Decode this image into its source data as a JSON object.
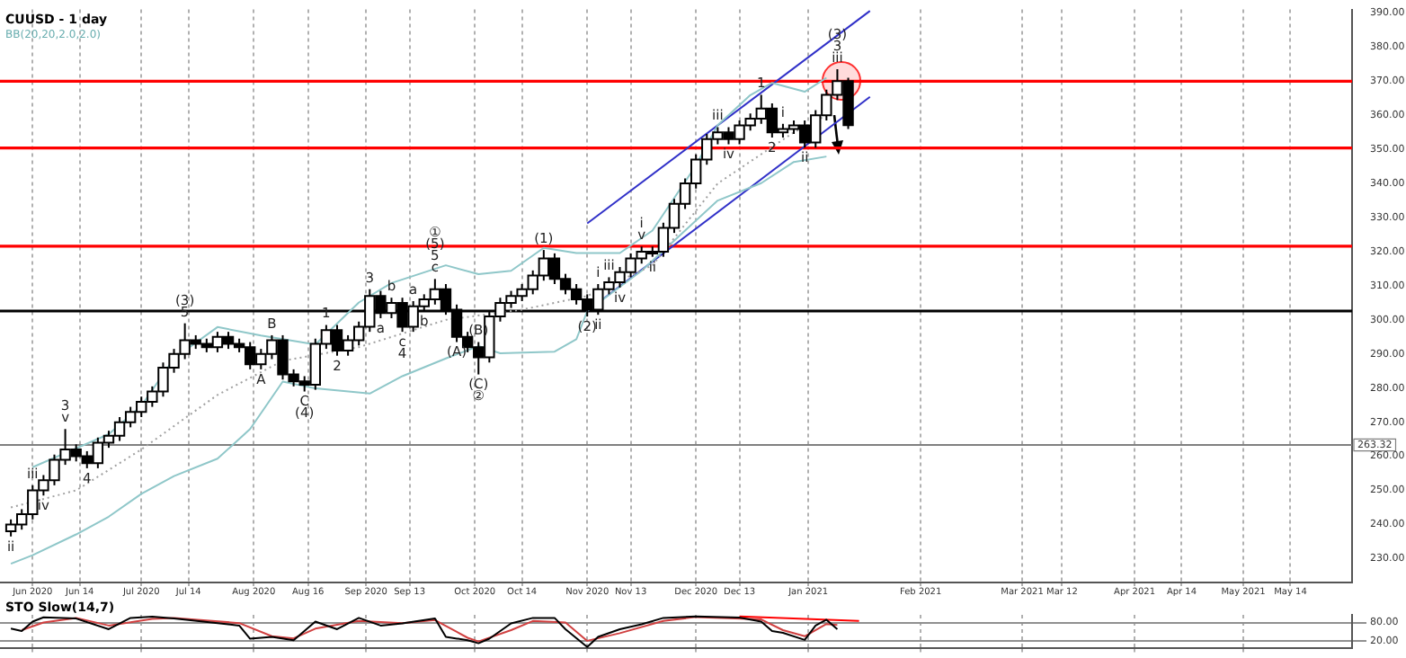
{
  "chart_data": [
    {
      "type": "candlestick",
      "title": "CUUSD - 1 day",
      "subtitle": "BB(20,20,2.0,2.0)",
      "x": [
        "2020-05-26",
        "2020-05-29",
        "2020-06-01",
        "2020-06-04",
        "2020-06-07",
        "2020-06-10",
        "2020-06-13",
        "2020-06-16",
        "2020-06-19",
        "2020-06-22",
        "2020-06-25",
        "2020-06-28",
        "2020-07-01",
        "2020-07-04",
        "2020-07-07",
        "2020-07-10",
        "2020-07-13",
        "2020-07-16",
        "2020-07-19",
        "2020-07-22",
        "2020-07-25",
        "2020-07-28",
        "2020-07-31",
        "2020-08-03",
        "2020-08-06",
        "2020-08-09",
        "2020-08-12",
        "2020-08-15",
        "2020-08-18",
        "2020-08-21",
        "2020-08-24",
        "2020-08-27",
        "2020-08-30",
        "2020-09-02",
        "2020-09-05",
        "2020-09-08",
        "2020-09-11",
        "2020-09-14",
        "2020-09-17",
        "2020-09-20",
        "2020-09-23",
        "2020-09-26",
        "2020-09-29",
        "2020-10-02",
        "2020-10-05",
        "2020-10-08",
        "2020-10-11",
        "2020-10-14",
        "2020-10-17",
        "2020-10-20",
        "2020-10-23",
        "2020-10-26",
        "2020-10-29",
        "2020-11-01",
        "2020-11-04",
        "2020-11-07",
        "2020-11-10",
        "2020-11-13",
        "2020-11-16",
        "2020-11-19",
        "2020-11-22",
        "2020-11-25",
        "2020-11-28",
        "2020-12-01",
        "2020-12-04",
        "2020-12-07",
        "2020-12-10",
        "2020-12-13",
        "2020-12-16",
        "2020-12-19",
        "2020-12-22",
        "2020-12-25",
        "2020-12-28",
        "2020-12-31",
        "2021-01-03",
        "2021-01-06",
        "2021-01-09",
        "2021-01-12"
      ],
      "ohlc": [
        [
          238,
          241.5,
          236.5,
          240
        ],
        [
          240,
          244.5,
          238.5,
          243
        ],
        [
          243,
          251.5,
          241.5,
          250
        ],
        [
          250,
          254.5,
          248.5,
          253
        ],
        [
          253,
          260.5,
          251.5,
          259
        ],
        [
          259,
          268,
          257.5,
          262
        ],
        [
          262,
          263.5,
          258.5,
          260
        ],
        [
          260,
          261.5,
          256.5,
          258
        ],
        [
          258,
          265.5,
          256.5,
          264
        ],
        [
          264,
          267.5,
          262.5,
          266
        ],
        [
          266,
          271.5,
          264.5,
          270
        ],
        [
          270,
          274.5,
          268.5,
          273
        ],
        [
          273,
          277.5,
          271.5,
          276
        ],
        [
          276,
          280.5,
          274.5,
          279
        ],
        [
          279,
          287.5,
          277.5,
          286
        ],
        [
          286,
          291.5,
          284.5,
          290
        ],
        [
          290,
          299,
          288.5,
          294
        ],
        [
          294,
          295.5,
          291.5,
          293
        ],
        [
          293,
          294.5,
          290.5,
          292
        ],
        [
          292,
          296.5,
          290.5,
          295
        ],
        [
          295,
          296.5,
          291.5,
          293
        ],
        [
          293,
          294.5,
          290.5,
          292
        ],
        [
          292,
          293.5,
          285.5,
          287
        ],
        [
          287,
          291.5,
          285.5,
          290
        ],
        [
          290,
          295.5,
          288.5,
          294
        ],
        [
          294,
          295.5,
          282.5,
          284
        ],
        [
          284,
          285.5,
          280.5,
          282
        ],
        [
          282,
          283.5,
          279,
          281
        ],
        [
          281,
          294.5,
          279.5,
          293
        ],
        [
          293,
          298.5,
          291.5,
          297
        ],
        [
          297,
          298.5,
          289.5,
          291
        ],
        [
          291,
          295.5,
          289.5,
          294
        ],
        [
          294,
          299.5,
          292.5,
          298
        ],
        [
          298,
          309,
          296.5,
          307
        ],
        [
          307,
          308.5,
          300.5,
          302
        ],
        [
          302,
          306.5,
          300.5,
          305
        ],
        [
          305,
          306.5,
          296.5,
          298
        ],
        [
          298,
          305.5,
          296.5,
          304
        ],
        [
          304,
          307.5,
          302.5,
          306
        ],
        [
          306,
          312,
          304.5,
          309
        ],
        [
          309,
          310.5,
          301.5,
          303
        ],
        [
          303,
          304.5,
          293.5,
          295
        ],
        [
          295,
          296.5,
          290.5,
          292
        ],
        [
          292,
          293.5,
          284,
          289
        ],
        [
          289,
          302.5,
          287.5,
          301
        ],
        [
          301,
          306.5,
          299.5,
          305
        ],
        [
          305,
          308.5,
          303.5,
          307
        ],
        [
          307,
          310.5,
          305.5,
          309
        ],
        [
          309,
          314.5,
          307.5,
          313
        ],
        [
          313,
          320.5,
          311.5,
          318
        ],
        [
          318,
          319.5,
          310.5,
          312
        ],
        [
          312,
          313.5,
          307.5,
          309
        ],
        [
          309,
          310.5,
          304.5,
          306
        ],
        [
          306,
          307.5,
          301,
          303
        ],
        [
          303,
          310.5,
          301.5,
          309
        ],
        [
          309,
          312.5,
          307.5,
          311
        ],
        [
          311,
          315.5,
          309.5,
          314
        ],
        [
          314,
          319.5,
          312.5,
          318
        ],
        [
          318,
          321.5,
          316.5,
          320
        ],
        [
          320,
          321.5,
          318.5,
          320
        ],
        [
          320,
          328.5,
          318.5,
          327
        ],
        [
          327,
          335.5,
          325.5,
          334
        ],
        [
          334,
          341.5,
          332.5,
          340
        ],
        [
          340,
          348.5,
          338.5,
          347
        ],
        [
          347,
          354.5,
          345.5,
          353
        ],
        [
          353,
          356.5,
          351.5,
          355
        ],
        [
          355,
          356.5,
          351.5,
          353
        ],
        [
          353,
          358.5,
          351.5,
          357
        ],
        [
          357,
          360.5,
          355.5,
          359
        ],
        [
          359,
          366,
          357.5,
          362
        ],
        [
          362,
          363.5,
          353.5,
          355
        ],
        [
          355,
          357.5,
          353.5,
          356
        ],
        [
          356,
          358.5,
          354.5,
          357
        ],
        [
          357,
          358.5,
          350.5,
          352
        ],
        [
          352,
          361.5,
          350.5,
          360
        ],
        [
          360,
          367.5,
          358.5,
          366
        ],
        [
          366,
          373.5,
          364.5,
          370
        ],
        [
          370,
          371,
          356,
          357.1
        ]
      ],
      "series": [
        {
          "type": "line",
          "color": "#8fc7c9",
          "x": [
            "2020-06-01",
            "2020-06-22",
            "2020-07-01",
            "2020-07-10",
            "2020-07-22",
            "2020-08-03",
            "2020-08-18",
            "2020-08-30",
            "2020-09-08",
            "2020-09-23",
            "2020-10-02",
            "2020-10-11",
            "2020-10-20",
            "2020-10-29",
            "2020-11-10",
            "2020-11-19",
            "2020-12-01",
            "2020-12-07",
            "2020-12-16",
            "2020-12-22",
            "2020-12-31",
            "2021-01-06"
          ],
          "values": [
            256.8,
            266.5,
            274.8,
            288.7,
            297.9,
            295.4,
            292.8,
            305.1,
            310.8,
            316,
            313.4,
            314.4,
            321.1,
            319.6,
            319.6,
            326.2,
            345.3,
            357.1,
            365.9,
            369.5,
            366.9,
            371
          ]
        },
        {
          "type": "line",
          "color": "#a0a0a0",
          "line_style": "dotted",
          "x": [
            "2020-05-26",
            "2020-06-13",
            "2020-07-01",
            "2020-07-22",
            "2020-08-09",
            "2020-08-30",
            "2020-09-23",
            "2020-10-14",
            "2020-11-01",
            "2020-11-19",
            "2020-12-07",
            "2020-12-28",
            "2021-01-06"
          ],
          "values": [
            245,
            250,
            262,
            278,
            288,
            292,
            300,
            303,
            307,
            316,
            340,
            355,
            360
          ]
        },
        {
          "type": "line",
          "color": "#8fc7c9",
          "x": [
            "2020-05-26",
            "2020-06-01",
            "2020-06-13",
            "2020-06-22",
            "2020-07-01",
            "2020-07-10",
            "2020-07-22",
            "2020-07-31",
            "2020-08-09",
            "2020-08-18",
            "2020-09-02",
            "2020-09-11",
            "2020-09-23",
            "2020-10-02",
            "2020-10-08",
            "2020-10-23",
            "2020-10-29",
            "2020-11-01",
            "2020-11-16",
            "2020-11-28",
            "2020-12-07",
            "2020-12-19",
            "2020-12-28",
            "2021-01-06"
          ],
          "values": [
            228.5,
            231,
            237.1,
            242.3,
            249,
            254.2,
            259.3,
            268,
            281.9,
            279.9,
            278.4,
            283.5,
            288.7,
            292.3,
            290.2,
            290.7,
            294.3,
            302.6,
            314.4,
            326.2,
            335,
            340.1,
            346.3,
            347.9
          ]
        },
        {
          "type": "line",
          "color": "#3030c8",
          "x": [
            "2020-11-01",
            "2021-01-18"
          ],
          "values": [
            328.3,
            390.6
          ]
        },
        {
          "type": "line",
          "color": "#3030c8",
          "x": [
            "2020-11-01",
            "2021-01-18"
          ],
          "values": [
            302.6,
            365.4
          ]
        }
      ],
      "ref_lines": [
        {
          "axis": "y",
          "value": 370,
          "color": "#ff0000"
        },
        {
          "axis": "y",
          "value": 350.4,
          "color": "#ff0000"
        },
        {
          "axis": "y",
          "value": 321.6,
          "color": "#ff0000"
        },
        {
          "axis": "y",
          "value": 302.6,
          "color": "#000000"
        },
        {
          "axis": "y",
          "value": 263.32,
          "label": "263.32",
          "color": "#808080"
        }
      ],
      "annotations": [
        {
          "text": "ii",
          "x": "2020-05-26",
          "y": 236.5
        },
        {
          "text": "iii",
          "x": "2020-06-01",
          "y": 251.5
        },
        {
          "text": "iv",
          "x": "2020-06-04",
          "y": 248.5
        },
        {
          "text": "v",
          "x": "2020-06-10",
          "y": 268
        },
        {
          "text": "3",
          "x": "2020-06-10",
          "y": 268
        },
        {
          "text": "4",
          "x": "2020-06-16",
          "y": 256.5
        },
        {
          "text": "5",
          "x": "2020-07-13",
          "y": 299
        },
        {
          "text": "(3)",
          "x": "2020-07-13",
          "y": 299
        },
        {
          "text": "A",
          "x": "2020-08-03",
          "y": 285.5
        },
        {
          "text": "B",
          "x": "2020-08-06",
          "y": 295.5
        },
        {
          "text": "C",
          "x": "2020-08-15",
          "y": 279
        },
        {
          "text": "(4)",
          "x": "2020-08-15",
          "y": 279
        },
        {
          "text": "1",
          "x": "2020-08-21",
          "y": 298.5
        },
        {
          "text": "2",
          "x": "2020-08-24",
          "y": 289.5
        },
        {
          "text": "3",
          "x": "2020-09-02",
          "y": 309
        },
        {
          "text": "a",
          "x": "2020-09-05",
          "y": 300.5
        },
        {
          "text": "b",
          "x": "2020-09-08",
          "y": 306.5
        },
        {
          "text": "c",
          "x": "2020-09-11",
          "y": 296.5
        },
        {
          "text": "4",
          "x": "2020-09-11",
          "y": 296.5
        },
        {
          "text": "a",
          "x": "2020-09-14",
          "y": 305.5
        },
        {
          "text": "b",
          "x": "2020-09-17",
          "y": 302.5
        },
        {
          "text": "c",
          "x": "2020-09-20",
          "y": 312
        },
        {
          "text": "5",
          "x": "2020-09-20",
          "y": 312
        },
        {
          "text": "(5)",
          "x": "2020-09-20",
          "y": 312
        },
        {
          "text": "①",
          "x": "2020-09-20",
          "y": 312
        },
        {
          "text": "(A)",
          "x": "2020-09-26",
          "y": 293.5
        },
        {
          "text": "(B)",
          "x": "2020-10-02",
          "y": 293.5
        },
        {
          "text": "(C)",
          "x": "2020-10-02",
          "y": 284
        },
        {
          "text": "②",
          "x": "2020-10-02",
          "y": 284
        },
        {
          "text": "(1)",
          "x": "2020-10-20",
          "y": 320.5
        },
        {
          "text": "(2)",
          "x": "2020-11-01",
          "y": 301
        },
        {
          "text": "ii",
          "x": "2020-11-04",
          "y": 301.5
        },
        {
          "text": "i",
          "x": "2020-11-04",
          "y": 310.5
        },
        {
          "text": "iii",
          "x": "2020-11-07",
          "y": 312.5
        },
        {
          "text": "iv",
          "x": "2020-11-10",
          "y": 309.5
        },
        {
          "text": "v",
          "x": "2020-11-16",
          "y": 321.5
        },
        {
          "text": "i",
          "x": "2020-11-16",
          "y": 321.5
        },
        {
          "text": "ii",
          "x": "2020-11-19",
          "y": 318.5
        },
        {
          "text": "iii",
          "x": "2020-12-07",
          "y": 356.5
        },
        {
          "text": "iv",
          "x": "2020-12-10",
          "y": 351.5
        },
        {
          "text": "1",
          "x": "2020-12-19",
          "y": 366
        },
        {
          "text": "i",
          "x": "2020-12-25",
          "y": 357.5
        },
        {
          "text": "2",
          "x": "2020-12-22",
          "y": 353.5
        },
        {
          "text": "ii",
          "x": "2020-12-31",
          "y": 350.5
        },
        {
          "text": "iii",
          "x": "2021-01-09",
          "y": 373.5
        },
        {
          "text": "3",
          "x": "2021-01-09",
          "y": 373.5
        },
        {
          "text": "(3)",
          "x": "2021-01-09",
          "y": 373.5
        }
      ],
      "xlim": [
        "2020-05-23",
        "2021-05-31"
      ],
      "xticks": [
        {
          "value": "2020-06-01",
          "label": "Jun 2020"
        },
        {
          "value": "2020-06-14",
          "label": "Jun 14"
        },
        {
          "value": "2020-07-01",
          "label": "Jul 2020"
        },
        {
          "value": "2020-07-14",
          "label": "Jul 14"
        },
        {
          "value": "2020-08-01",
          "label": "Aug 2020"
        },
        {
          "value": "2020-08-16",
          "label": "Aug 16"
        },
        {
          "value": "2020-09-01",
          "label": "Sep 2020"
        },
        {
          "value": "2020-09-13",
          "label": "Sep 13"
        },
        {
          "value": "2020-10-01",
          "label": "Oct 2020"
        },
        {
          "value": "2020-10-14",
          "label": "Oct 14"
        },
        {
          "value": "2020-11-01",
          "label": "Nov 2020"
        },
        {
          "value": "2020-11-13",
          "label": "Nov 13"
        },
        {
          "value": "2020-12-01",
          "label": "Dec 2020"
        },
        {
          "value": "2020-12-13",
          "label": "Dec 13"
        },
        {
          "value": "2021-01-01",
          "label": "Jan 2021"
        },
        {
          "value": "2021-02-01",
          "label": "Feb 2021"
        },
        {
          "value": "2021-03-01",
          "label": "Mar 2021"
        },
        {
          "value": "2021-03-12",
          "label": "Mar 12"
        },
        {
          "value": "2021-04-01",
          "label": "Apr 2021"
        },
        {
          "value": "2021-04-14",
          "label": "Apr 14"
        },
        {
          "value": "2021-05-01",
          "label": "May 2021"
        },
        {
          "value": "2021-05-14",
          "label": "May 14"
        }
      ],
      "ylim": [
        223,
        391
      ],
      "yticks": [
        {
          "value": 230,
          "label": "230.00"
        },
        {
          "value": 240,
          "label": "240.00"
        },
        {
          "value": 250,
          "label": "250.00"
        },
        {
          "value": 260,
          "label": "260.00"
        },
        {
          "value": 270,
          "label": "270.00"
        },
        {
          "value": 280,
          "label": "280.00"
        },
        {
          "value": 290,
          "label": "290.00"
        },
        {
          "value": 300,
          "label": "300.00"
        },
        {
          "value": 310,
          "label": "310.00"
        },
        {
          "value": 320,
          "label": "320.00"
        },
        {
          "value": 330,
          "label": "330.00"
        },
        {
          "value": 340,
          "label": "340.00"
        },
        {
          "value": 350,
          "label": "350.00"
        },
        {
          "value": 360,
          "label": "360.00"
        },
        {
          "value": 370,
          "label": "370.00"
        },
        {
          "value": 380,
          "label": "380.00"
        },
        {
          "value": 390,
          "label": "390.00"
        }
      ],
      "grid": "x"
    },
    {
      "type": "line",
      "title": "STO Slow(14,7)",
      "series": [
        {
          "color": "#000000",
          "x": [
            "2020-05-26",
            "2020-05-29",
            "2020-06-01",
            "2020-06-04",
            "2020-06-13",
            "2020-06-22",
            "2020-06-28",
            "2020-07-04",
            "2020-07-10",
            "2020-07-28",
            "2020-07-31",
            "2020-08-06",
            "2020-08-12",
            "2020-08-18",
            "2020-08-24",
            "2020-08-30",
            "2020-09-05",
            "2020-09-11",
            "2020-09-20",
            "2020-09-23",
            "2020-09-29",
            "2020-10-02",
            "2020-10-05",
            "2020-10-11",
            "2020-10-17",
            "2020-10-23",
            "2020-10-26",
            "2020-11-01",
            "2020-11-04",
            "2020-11-10",
            "2020-11-16",
            "2020-11-22",
            "2020-12-01",
            "2020-12-13",
            "2020-12-19",
            "2020-12-22",
            "2020-12-25",
            "2020-12-31",
            "2021-01-03",
            "2021-01-06",
            "2021-01-09"
          ],
          "values": [
            60,
            52,
            83,
            97,
            93,
            58,
            95,
            99,
            93,
            70,
            27,
            33,
            22,
            83,
            58,
            95,
            70,
            77,
            93,
            33,
            22,
            12,
            27,
            77,
            95,
            95,
            58,
            0,
            33,
            58,
            74,
            95,
            100,
            96,
            83,
            52,
            46,
            23,
            70,
            89,
            58
          ]
        },
        {
          "color": "#d04040",
          "x": [
            "2020-05-29",
            "2020-06-04",
            "2020-06-13",
            "2020-06-22",
            "2020-07-04",
            "2020-07-10",
            "2020-07-28",
            "2020-08-06",
            "2020-08-12",
            "2020-08-18",
            "2020-08-30",
            "2020-09-11",
            "2020-09-20",
            "2020-09-29",
            "2020-10-02",
            "2020-10-11",
            "2020-10-17",
            "2020-10-26",
            "2020-11-01",
            "2020-11-10",
            "2020-11-22",
            "2020-12-01",
            "2020-12-19",
            "2020-12-25",
            "2020-12-31",
            "2021-01-06",
            "2021-01-09"
          ],
          "values": [
            55,
            80,
            95,
            70,
            92,
            95,
            78,
            35,
            28,
            60,
            85,
            78,
            88,
            30,
            18,
            55,
            85,
            80,
            20,
            45,
            85,
            98,
            90,
            55,
            35,
            75,
            72
          ]
        },
        {
          "color": "#ff0000",
          "x": [
            "2020-12-13",
            "2021-01-15"
          ],
          "values": [
            100,
            85
          ]
        }
      ],
      "xlim": [
        "2020-05-23",
        "2021-05-31"
      ],
      "xticks": [
        "2020-06-01",
        "2020-07-01",
        "2020-08-01",
        "2020-09-01",
        "2020-10-01",
        "2020-11-01",
        "2020-12-01",
        "2021-01-01",
        "2021-02-01",
        "2021-03-01",
        "2021-04-01",
        "2021-05-01"
      ],
      "ylim": [
        -5,
        105
      ],
      "yticks": [
        {
          "value": 20,
          "label": "20.00"
        },
        {
          "value": 80,
          "label": "80.00"
        }
      ],
      "tick_labels": "y",
      "grid": true
    }
  ]
}
